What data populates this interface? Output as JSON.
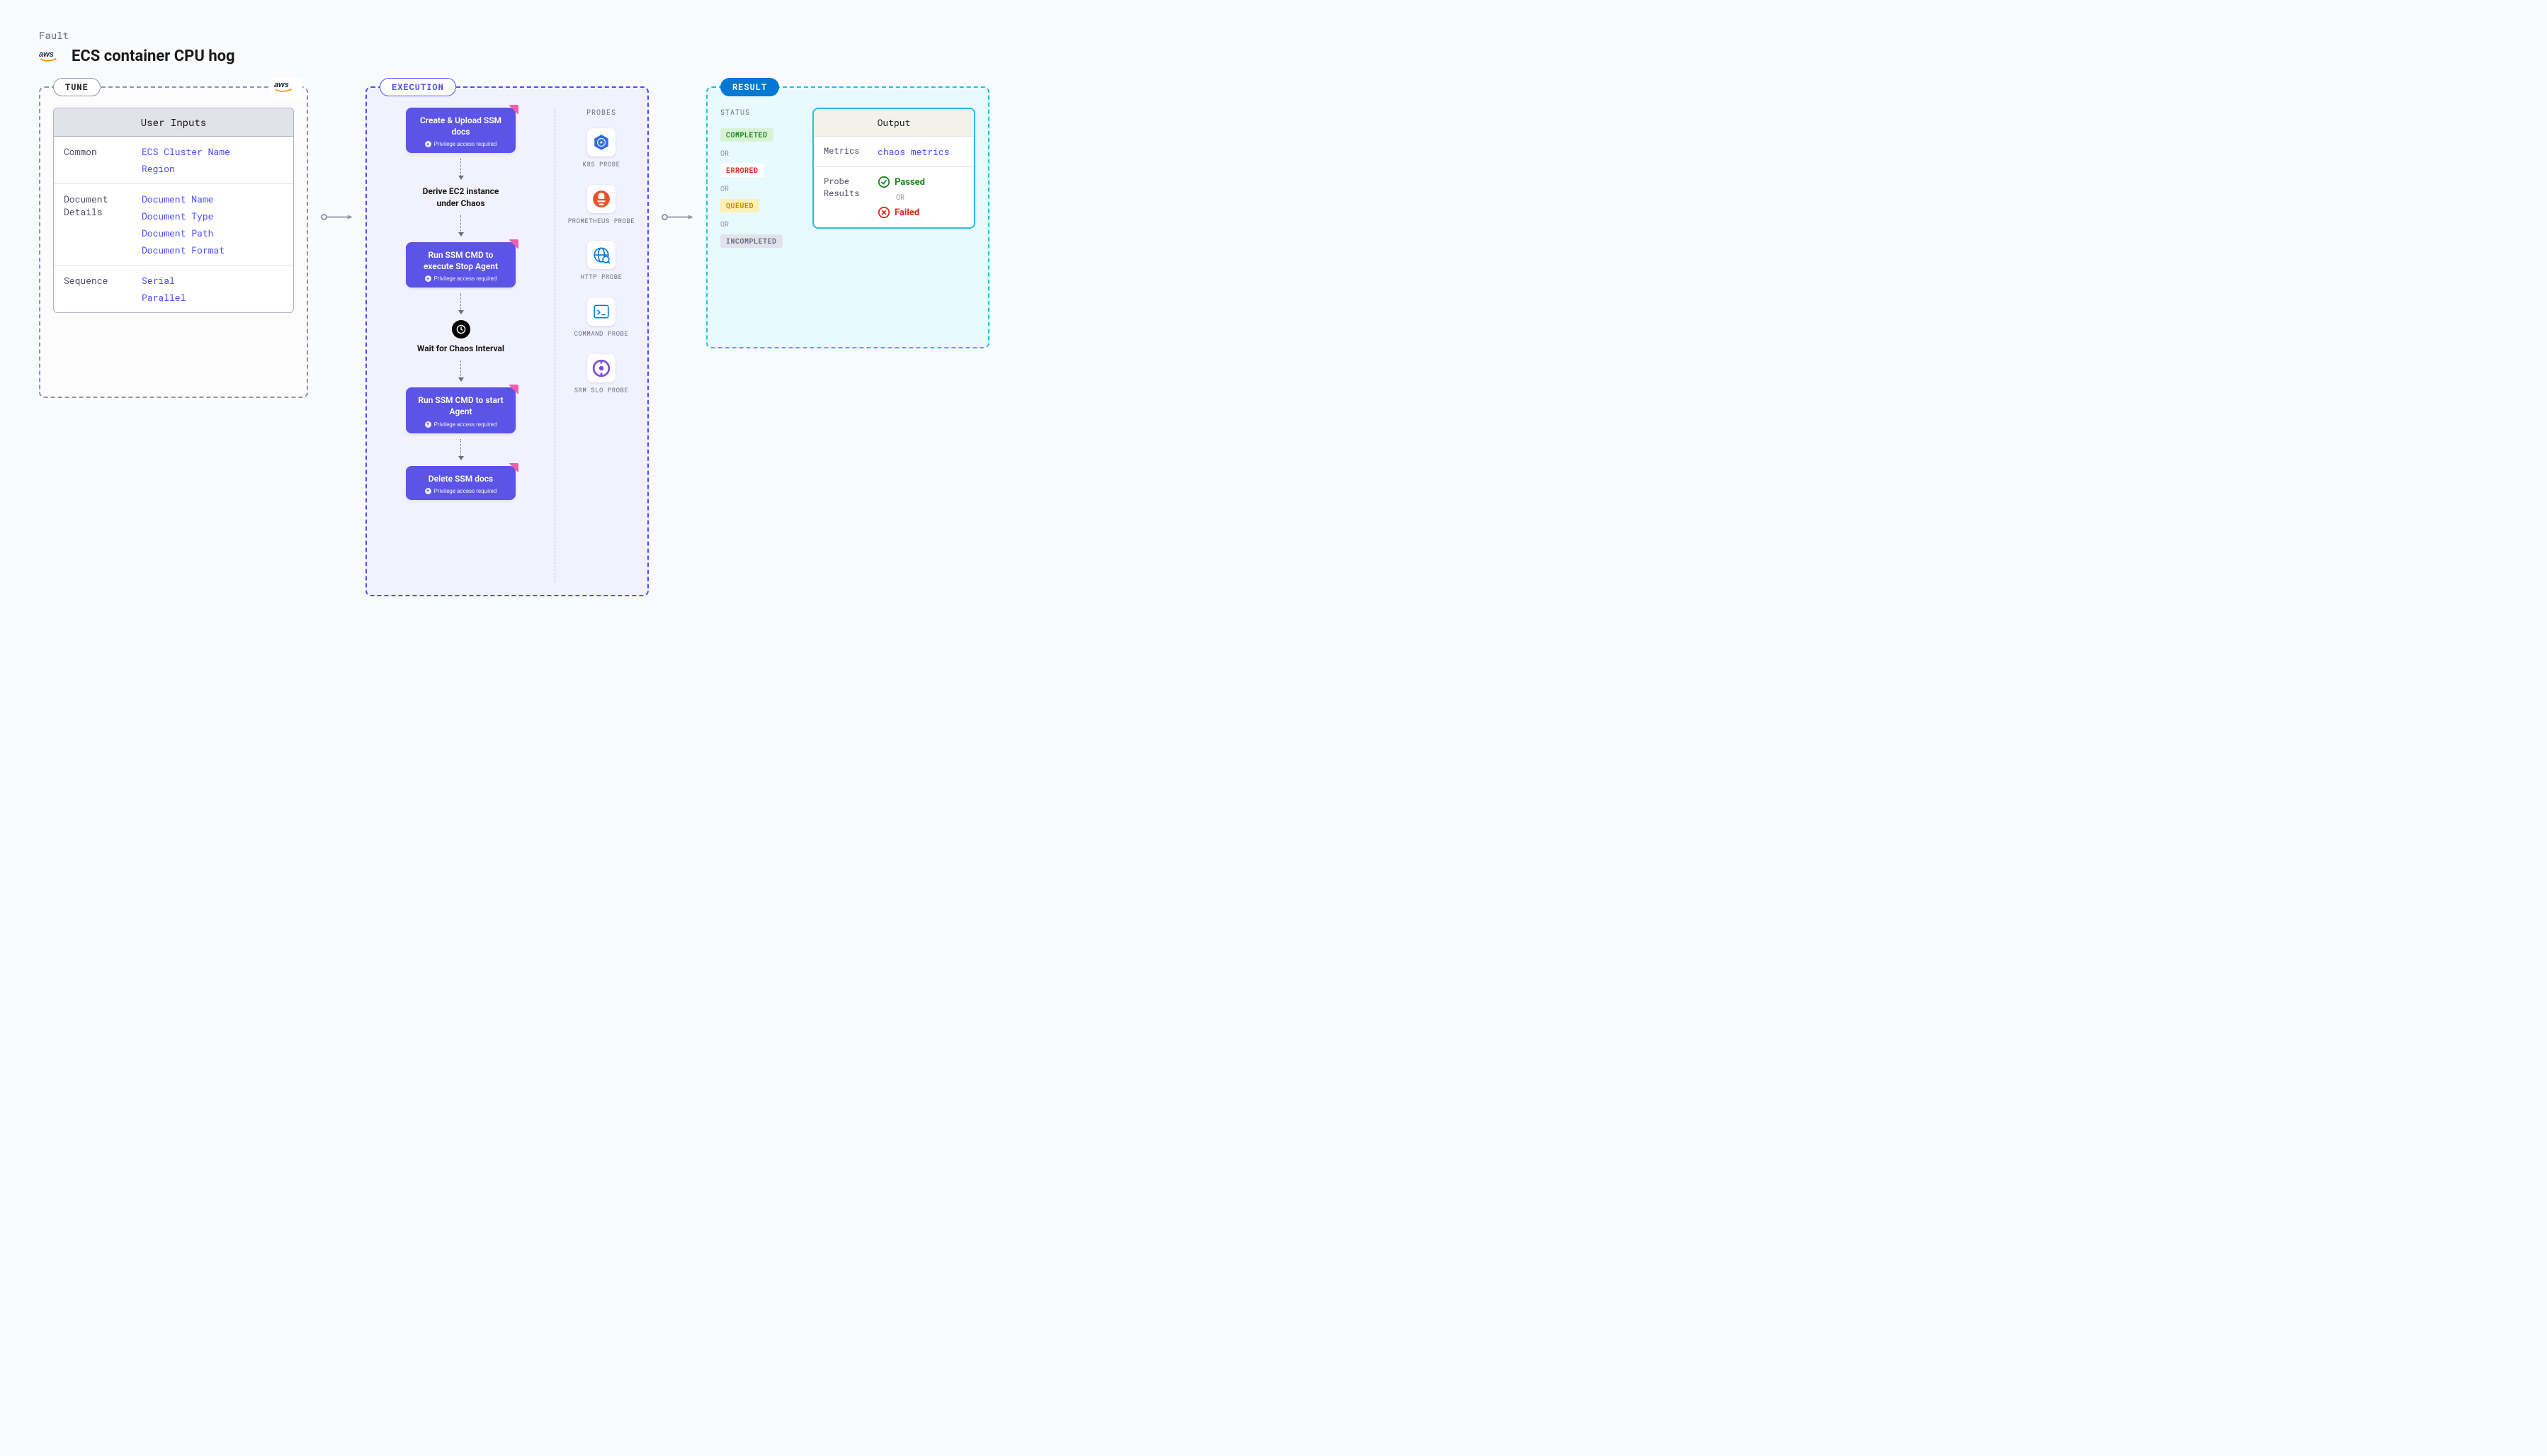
{
  "header": {
    "fault_label": "Fault",
    "title": "ECS container CPU hog"
  },
  "tune": {
    "pill": "TUNE",
    "inputs_header": "User Inputs",
    "rows": [
      {
        "label": "Common",
        "values": [
          "ECS Cluster Name",
          "Region"
        ]
      },
      {
        "label": "Document Details",
        "values": [
          "Document Name",
          "Document Type",
          "Document Path",
          "Document Format"
        ]
      },
      {
        "label": "Sequence",
        "values": [
          "Serial",
          "Parallel"
        ]
      }
    ]
  },
  "execution": {
    "pill": "EXECUTION",
    "privilege_text": "Privilege access required",
    "steps": [
      {
        "type": "card",
        "title": "Create & Upload SSM docs",
        "privilege": true
      },
      {
        "type": "plain",
        "title": "Derive EC2 instance under Chaos"
      },
      {
        "type": "card",
        "title": "Run SSM CMD to execute Stop Agent",
        "privilege": true
      },
      {
        "type": "clock",
        "title": "Wait for Chaos Interval"
      },
      {
        "type": "card",
        "title": "Run SSM CMD to start Agent",
        "privilege": true
      },
      {
        "type": "card",
        "title": "Delete SSM docs",
        "privilege": true
      }
    ],
    "probes_label": "PROBES",
    "probes": [
      {
        "name": "K8S PROBE",
        "icon": "k8s",
        "color": "#326ce5"
      },
      {
        "name": "PROMETHEUS PROBE",
        "icon": "prom",
        "color": "#e6522c"
      },
      {
        "name": "HTTP PROBE",
        "icon": "http",
        "color": "#0278d5"
      },
      {
        "name": "COMMAND PROBE",
        "icon": "cmd",
        "color": "#0278d5"
      },
      {
        "name": "SRM SLO PROBE",
        "icon": "srm",
        "color": "#7d4dd3"
      }
    ]
  },
  "result": {
    "pill": "RESULT",
    "status_label": "STATUS",
    "or": "OR",
    "statuses": [
      {
        "text": "COMPLETED",
        "bg": "#d8f3d4",
        "fg": "#1b841d"
      },
      {
        "text": "ERRORED",
        "bg": "#ffffff",
        "fg": "#da291d"
      },
      {
        "text": "QUEUED",
        "bg": "#fff0b3",
        "fg": "#c08b00"
      },
      {
        "text": "INCOMPLETED",
        "bg": "#e2e2ea",
        "fg": "#6b6d85"
      }
    ],
    "output_header": "Output",
    "metrics_label": "Metrics",
    "metrics_value": "chaos metrics",
    "probe_results_label": "Probe Results",
    "passed": "Passed",
    "failed": "Failed"
  },
  "colors": {
    "panel_border_gray": "#9293ab",
    "panel_border_blue": "#4d4dff",
    "panel_border_cyan": "#26bde8",
    "step_card_bg": "#5b54e6",
    "link_blue": "#4d4dff",
    "result_pill_bg": "#0278d5"
  }
}
